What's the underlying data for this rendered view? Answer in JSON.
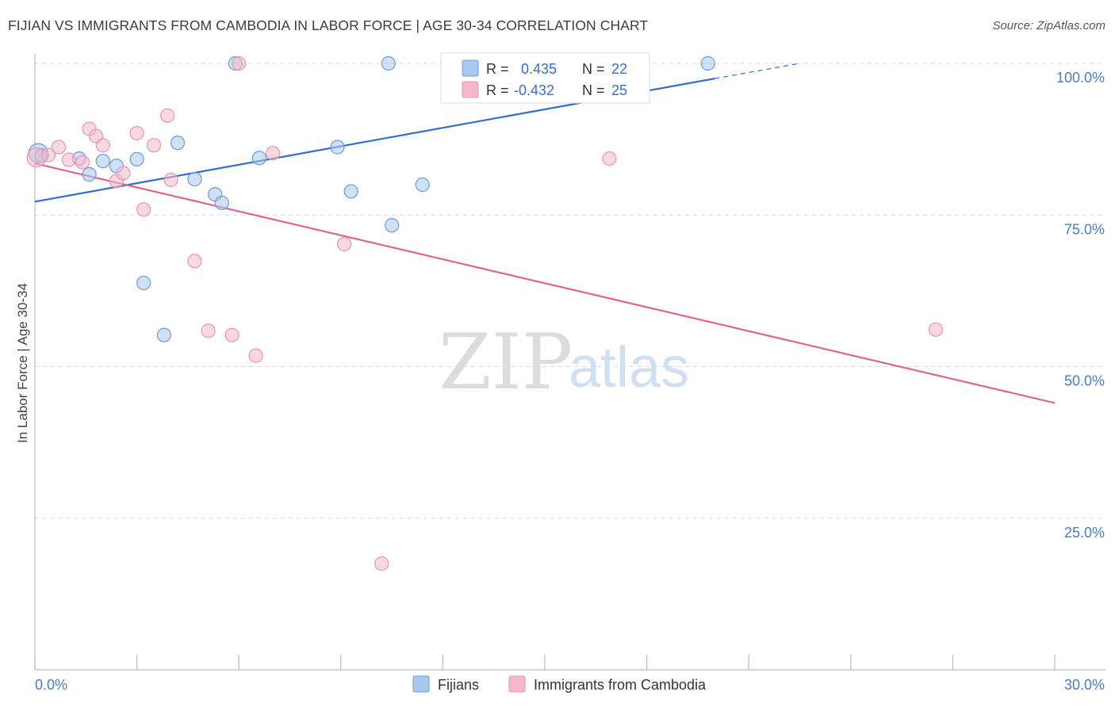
{
  "header": {
    "title": "FIJIAN VS IMMIGRANTS FROM CAMBODIA IN LABOR FORCE | AGE 30-34 CORRELATION CHART",
    "source": "Source: ZipAtlas.com"
  },
  "watermark": {
    "zip": "ZIP",
    "atlas": "atlas"
  },
  "stats_box": {
    "rows": [
      {
        "r_label": "R =",
        "r_value": "0.435",
        "n_label": "N =",
        "n_value": "22",
        "color": "#a9c8ee"
      },
      {
        "r_label": "R =",
        "r_value": "-0.432",
        "n_label": "N =",
        "n_value": "25",
        "color": "#f5b8cb"
      }
    ]
  },
  "legend": {
    "items": [
      {
        "label": "Fijians",
        "color": "#a9c8ee"
      },
      {
        "label": "Immigrants from Cambodia",
        "color": "#f5b8cb"
      }
    ]
  },
  "chart_data": {
    "type": "scatter",
    "title": "FIJIAN VS IMMIGRANTS FROM CAMBODIA IN LABOR FORCE | AGE 30-34 CORRELATION CHART",
    "xlabel": "",
    "ylabel": "In Labor Force | Age 30-34",
    "xlim": [
      0,
      30
    ],
    "ylim": [
      0,
      105
    ],
    "x_tick_labels": [
      {
        "value": 0,
        "label": "0.0%"
      },
      {
        "value": 30,
        "label": "30.0%"
      }
    ],
    "y_tick_labels": [
      {
        "value": 100,
        "label": "100.0%"
      },
      {
        "value": 75,
        "label": "75.0%"
      },
      {
        "value": 50,
        "label": "50.0%"
      },
      {
        "value": 25,
        "label": "25.0%"
      }
    ],
    "grid": true,
    "series": [
      {
        "name": "Fijians",
        "color": "#a9c8ee",
        "stroke": "#6d9bd8",
        "line_color": "#2f6fcb",
        "r": 0.435,
        "n": 22,
        "trend": {
          "x": [
            0,
            20
          ],
          "y": [
            77.2,
            97.5
          ],
          "dash_to_x": 22.5,
          "dash_to_y": 100.0
        },
        "points": [
          [
            0.1,
            85.2
          ],
          [
            1.3,
            84.3
          ],
          [
            1.6,
            81.7
          ],
          [
            2.0,
            83.9
          ],
          [
            2.4,
            83.1
          ],
          [
            3.0,
            84.2
          ],
          [
            3.2,
            63.8
          ],
          [
            4.2,
            86.9
          ],
          [
            3.8,
            55.2
          ],
          [
            4.7,
            80.9
          ],
          [
            5.3,
            78.4
          ],
          [
            5.5,
            77.0
          ],
          [
            5.9,
            100.0
          ],
          [
            6.6,
            84.4
          ],
          [
            8.9,
            86.2
          ],
          [
            9.3,
            78.9
          ],
          [
            10.5,
            73.3
          ],
          [
            10.4,
            100.0
          ],
          [
            11.4,
            80.0
          ],
          [
            12.5,
            100.0
          ],
          [
            19.8,
            100.0
          ],
          [
            0.2,
            84.8
          ]
        ]
      },
      {
        "name": "Immigrants from Cambodia",
        "color": "#f5b8cb",
        "stroke": "#e897b0",
        "line_color": "#e0648f",
        "r": -0.432,
        "n": 25,
        "trend": {
          "x": [
            0,
            30
          ],
          "y": [
            83.5,
            44.0
          ]
        },
        "points": [
          [
            0.05,
            84.5
          ],
          [
            0.4,
            84.9
          ],
          [
            0.7,
            86.2
          ],
          [
            1.0,
            84.1
          ],
          [
            1.4,
            83.7
          ],
          [
            1.6,
            89.2
          ],
          [
            1.8,
            88.0
          ],
          [
            2.0,
            86.5
          ],
          [
            2.4,
            80.6
          ],
          [
            2.6,
            81.9
          ],
          [
            3.0,
            88.5
          ],
          [
            3.2,
            75.9
          ],
          [
            3.5,
            86.5
          ],
          [
            3.9,
            91.4
          ],
          [
            4.0,
            80.8
          ],
          [
            4.7,
            67.4
          ],
          [
            5.1,
            55.9
          ],
          [
            5.8,
            55.2
          ],
          [
            6.0,
            100.0
          ],
          [
            6.5,
            51.8
          ],
          [
            7.0,
            85.2
          ],
          [
            9.1,
            70.2
          ],
          [
            10.2,
            17.5
          ],
          [
            16.9,
            84.3
          ],
          [
            26.5,
            56.1
          ]
        ]
      }
    ]
  }
}
